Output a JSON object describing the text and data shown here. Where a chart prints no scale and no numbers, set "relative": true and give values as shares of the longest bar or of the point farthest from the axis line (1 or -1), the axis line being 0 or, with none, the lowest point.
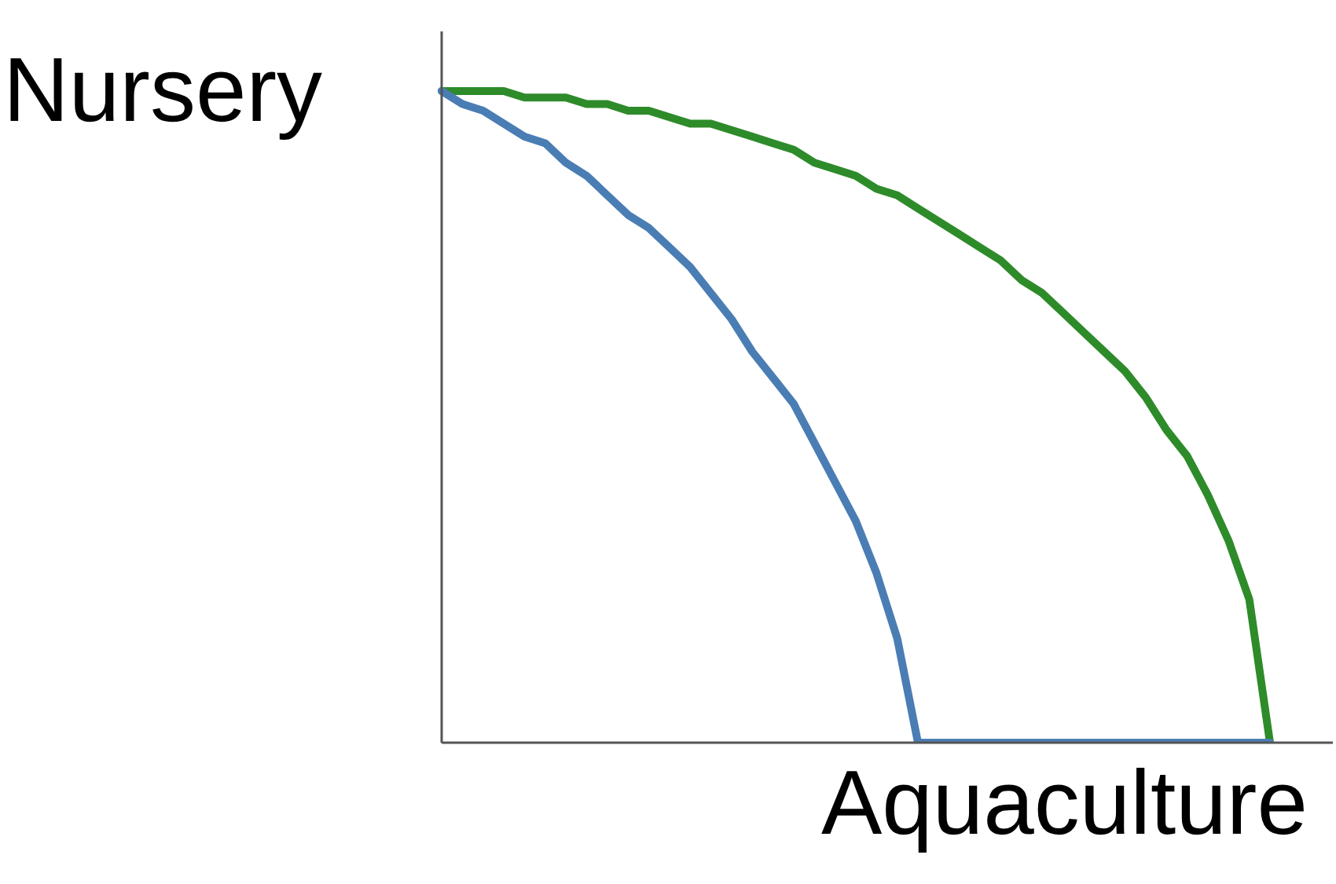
{
  "chart_data": {
    "type": "line",
    "relative": true,
    "xlabel": "Aquaculture",
    "ylabel": "Nursery",
    "grid": false,
    "legend": false,
    "categories": [
      null,
      null,
      null,
      null,
      null,
      null,
      null,
      null,
      null,
      null,
      null,
      null,
      null,
      null,
      null,
      null,
      null,
      null,
      null,
      null,
      null,
      null,
      null,
      null,
      null,
      null,
      null,
      null,
      null,
      null,
      null,
      null,
      null,
      null,
      null,
      null,
      null,
      null,
      null,
      null,
      null
    ],
    "series": [
      {
        "color": "#2e8b2a",
        "values": [
          1,
          1,
          1,
          1,
          0.99,
          0.99,
          0.99,
          0.98,
          0.98,
          0.97,
          0.97,
          0.96,
          0.95,
          0.95,
          0.94,
          0.93,
          0.92,
          0.91,
          0.89,
          0.88,
          0.87,
          0.85,
          0.84,
          0.82,
          0.8,
          0.78,
          0.76,
          0.74,
          0.71,
          0.69,
          0.66,
          0.63,
          0.6,
          0.57,
          0.53,
          0.48,
          0.44,
          0.38,
          0.31,
          0.22,
          0
        ]
      },
      {
        "color": "#4a7db4",
        "values": [
          1,
          0.98,
          0.97,
          0.95,
          0.93,
          0.92,
          0.89,
          0.87,
          0.84,
          0.81,
          0.79,
          0.76,
          0.73,
          0.69,
          0.65,
          0.6,
          0.56,
          0.52,
          0.46,
          0.4,
          0.34,
          0.26,
          0.16,
          0,
          0,
          0,
          0,
          0,
          0,
          0,
          0,
          0,
          0,
          0,
          0,
          0,
          0,
          0,
          0,
          0,
          0
        ]
      }
    ]
  }
}
